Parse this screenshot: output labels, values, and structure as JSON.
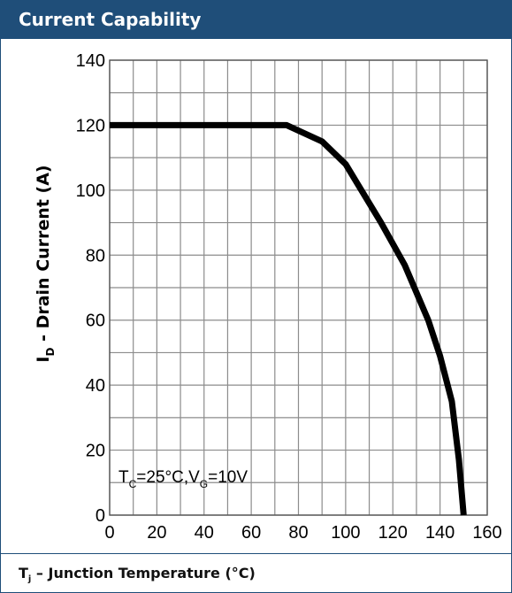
{
  "title": "Current Capability",
  "chart_data": {
    "type": "line",
    "title": "Current Capability",
    "xlabel": "T",
    "xlabel_sub": "j",
    "xlabel_rest": " – Junction Temperature (°C)",
    "ylabel": "I",
    "ylabel_sub": "D",
    "ylabel_rest": " - Drain Current (A)",
    "xlim": [
      0,
      160
    ],
    "ylim": [
      0,
      140
    ],
    "xticks": [
      0,
      20,
      40,
      60,
      80,
      100,
      120,
      140,
      160
    ],
    "yticks": [
      0,
      20,
      40,
      60,
      80,
      100,
      120,
      140
    ],
    "grid": true,
    "x_minor_step": 10,
    "y_minor_step": 10,
    "series": [
      {
        "color": "#000000",
        "x": [
          0,
          75,
          90,
          100,
          105,
          115,
          125,
          135,
          140,
          145,
          148,
          150
        ],
        "y": [
          120,
          120,
          115,
          108,
          102,
          90,
          77,
          60,
          49,
          35,
          17,
          0
        ]
      }
    ],
    "annotations": [
      {
        "parts": [
          "T",
          "C",
          "=25°C,V",
          "G",
          "=10V"
        ],
        "x": 3,
        "y": 10
      }
    ]
  }
}
